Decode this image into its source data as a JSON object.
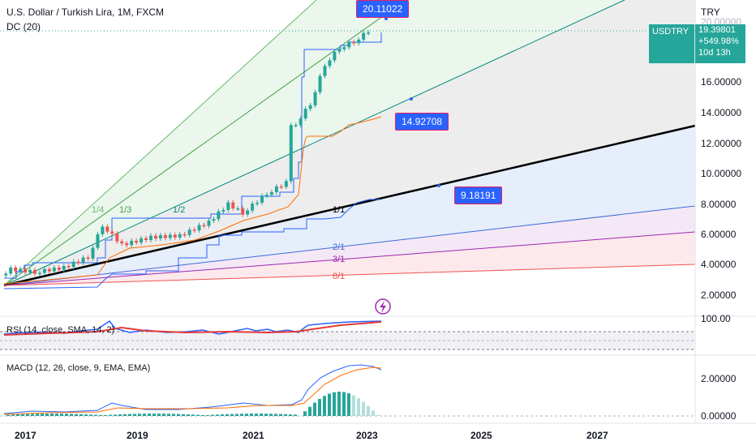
{
  "legend": {
    "title": "U.S. Dollar / Turkish Lira, 1M, FXCM",
    "dc": "DC (20)",
    "rsi": "RSI (14, close, SMA, 14, 2)",
    "macd": "MACD (12, 26, close, 9, EMA, EMA)"
  },
  "axis": {
    "currency": "TRY",
    "y_labels": [
      "16.00000",
      "14.00000",
      "12.00000",
      "10.00000",
      "8.00000",
      "6.00000",
      "4.00000",
      "2.00000"
    ],
    "rsi_label": "100.00",
    "macd_labels": [
      "2.00000",
      "0.00000"
    ],
    "x_labels": [
      "2017",
      "2019",
      "2021",
      "2023",
      "2025",
      "2027"
    ]
  },
  "price_box": {
    "symbol": "USDTRY",
    "price": "19.39801",
    "change": "+549.98%",
    "countdown": "10d 13h",
    "partial_top": "20.00000"
  },
  "callouts": {
    "top": "20.11022",
    "mid": "14.92708",
    "low": "9.18191"
  },
  "gann_labels": {
    "l14": "1/4",
    "l13": "1/3",
    "l12": "1/2",
    "l11": "1/1",
    "l21": "2/1",
    "l31": "3/1",
    "l81": "8/1"
  },
  "colors": {
    "up": "#26a69a",
    "down": "#ef5350",
    "accent": "#2962ff",
    "callout_border": "#e91e63"
  },
  "chart_data": {
    "type": "candlestick",
    "title": "U.S. Dollar / Turkish Lira, 1M, FXCM",
    "x_ticks": [
      "2017",
      "2019",
      "2021",
      "2023",
      "2025",
      "2027"
    ],
    "y_ticks": [
      2,
      4,
      6,
      8,
      10,
      12,
      14,
      16,
      20
    ],
    "close_approx": [
      [
        "2016-11",
        3.3
      ],
      [
        "2017-01",
        3.7
      ],
      [
        "2017-06",
        3.5
      ],
      [
        "2017-12",
        3.8
      ],
      [
        "2018-05",
        4.5
      ],
      [
        "2018-08",
        6.6
      ],
      [
        "2018-12",
        5.3
      ],
      [
        "2019-06",
        5.8
      ],
      [
        "2019-12",
        5.9
      ],
      [
        "2020-06",
        6.8
      ],
      [
        "2020-10",
        8.0
      ],
      [
        "2021-01",
        7.4
      ],
      [
        "2021-06",
        8.7
      ],
      [
        "2021-10",
        9.4
      ],
      [
        "2021-11",
        13.3
      ],
      [
        "2021-12",
        13.3
      ],
      [
        "2022-03",
        14.6
      ],
      [
        "2022-06",
        17.2
      ],
      [
        "2022-09",
        18.3
      ],
      [
        "2022-12",
        18.7
      ],
      [
        "2023-03",
        19.4
      ]
    ],
    "last_price": 19.39801,
    "rsi_level": 100.0,
    "macd_level": 2.0
  }
}
